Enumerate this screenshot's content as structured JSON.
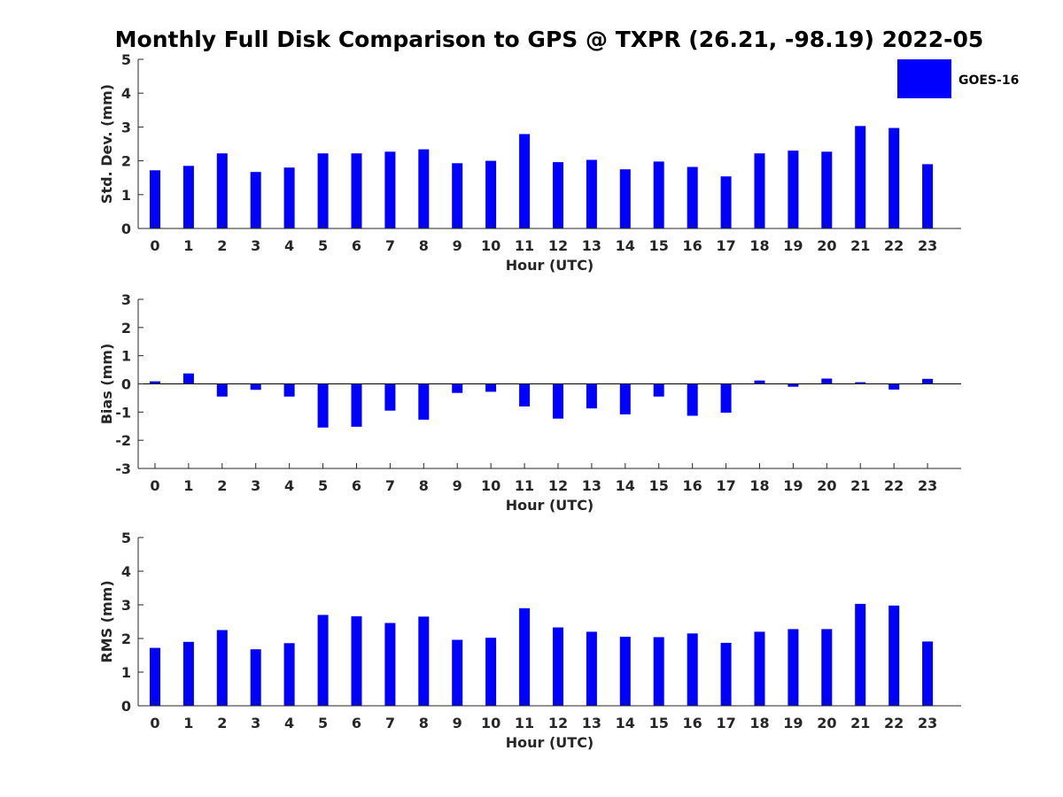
{
  "title": "Monthly Full Disk Comparison to GPS @ TXPR (26.21, -98.19) 2022-05",
  "legend": {
    "label": "GOES-16",
    "color": "#0000ff"
  },
  "chart_data": [
    {
      "type": "bar",
      "name": "stddev",
      "xlabel": "Hour (UTC)",
      "ylabel": "Std. Dev. (mm)",
      "categories": [
        "0",
        "1",
        "2",
        "3",
        "4",
        "5",
        "6",
        "7",
        "8",
        "9",
        "10",
        "11",
        "12",
        "13",
        "14",
        "15",
        "16",
        "17",
        "18",
        "19",
        "20",
        "21",
        "22",
        "23"
      ],
      "ylim": [
        0,
        5
      ],
      "yticks": [
        "0",
        "1",
        "2",
        "3",
        "4",
        "5"
      ],
      "series": [
        {
          "name": "GOES-16",
          "values": [
            1.72,
            1.85,
            2.22,
            1.67,
            1.8,
            2.22,
            2.22,
            2.27,
            2.34,
            1.93,
            2.0,
            2.79,
            1.96,
            2.03,
            1.75,
            1.98,
            1.82,
            1.54,
            2.22,
            2.3,
            2.27,
            3.03,
            2.97,
            1.9
          ]
        }
      ]
    },
    {
      "type": "bar",
      "name": "bias",
      "xlabel": "Hour (UTC)",
      "ylabel": "Bias (mm)",
      "categories": [
        "0",
        "1",
        "2",
        "3",
        "4",
        "5",
        "6",
        "7",
        "8",
        "9",
        "10",
        "11",
        "12",
        "13",
        "14",
        "15",
        "16",
        "17",
        "18",
        "19",
        "20",
        "21",
        "22",
        "23"
      ],
      "ylim": [
        -3,
        3
      ],
      "yticks": [
        "-3",
        "-2",
        "-1",
        "0",
        "1",
        "2",
        "3"
      ],
      "series": [
        {
          "name": "GOES-16",
          "values": [
            0.09,
            0.37,
            -0.45,
            -0.21,
            -0.45,
            -1.55,
            -1.52,
            -0.95,
            -1.27,
            -0.32,
            -0.28,
            -0.8,
            -1.23,
            -0.87,
            -1.08,
            -0.45,
            -1.13,
            -1.02,
            0.12,
            -0.1,
            0.19,
            0.06,
            -0.2,
            0.18
          ]
        }
      ]
    },
    {
      "type": "bar",
      "name": "rms",
      "xlabel": "Hour (UTC)",
      "ylabel": "RMS (mm)",
      "categories": [
        "0",
        "1",
        "2",
        "3",
        "4",
        "5",
        "6",
        "7",
        "8",
        "9",
        "10",
        "11",
        "12",
        "13",
        "14",
        "15",
        "16",
        "17",
        "18",
        "19",
        "20",
        "21",
        "22",
        "23"
      ],
      "ylim": [
        0,
        5
      ],
      "yticks": [
        "0",
        "1",
        "2",
        "3",
        "4",
        "5"
      ],
      "series": [
        {
          "name": "GOES-16",
          "values": [
            1.72,
            1.9,
            2.25,
            1.68,
            1.86,
            2.7,
            2.66,
            2.46,
            2.65,
            1.96,
            2.02,
            2.9,
            2.33,
            2.2,
            2.05,
            2.04,
            2.15,
            1.87,
            2.2,
            2.28,
            2.28,
            3.03,
            2.98,
            1.91
          ]
        }
      ]
    }
  ]
}
